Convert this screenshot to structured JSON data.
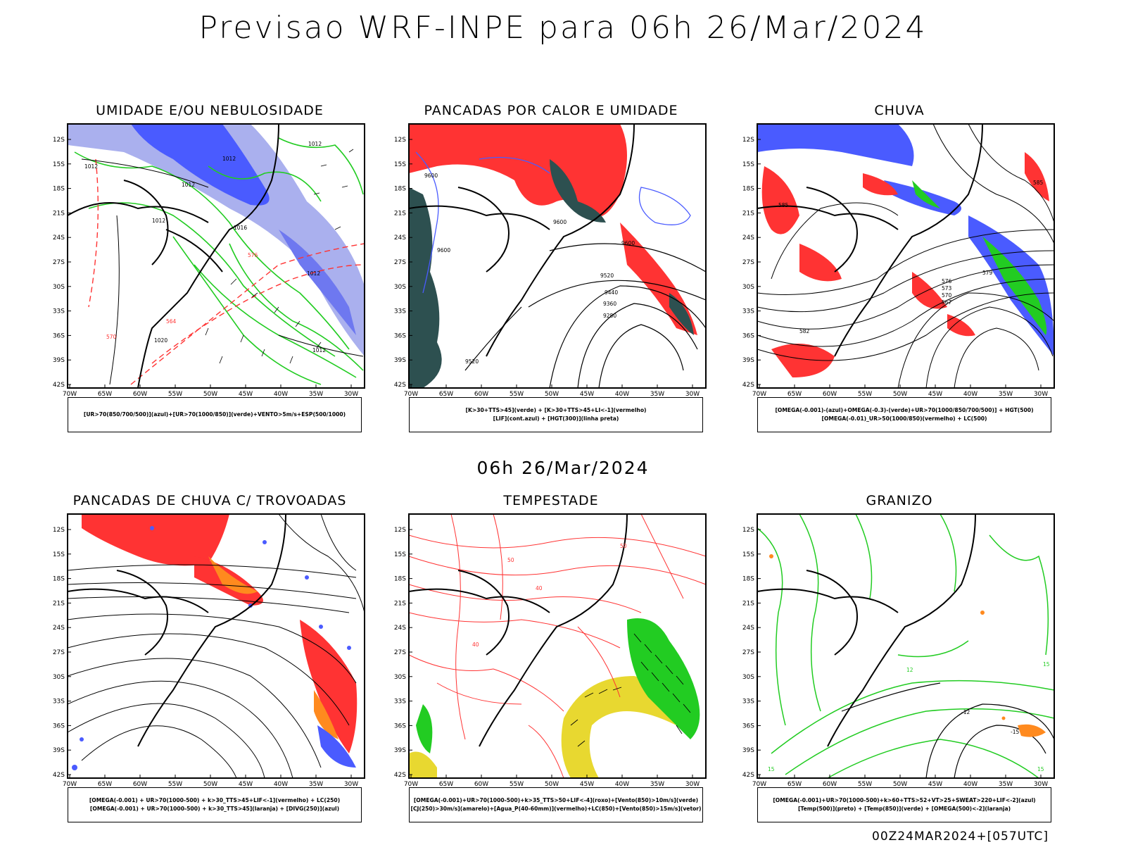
{
  "title": "Previsao WRF-INPE  para 06h 26/Mar/2024",
  "middle_title": "06h 26/Mar/2024",
  "footer": "00Z24MAR2024+[057UTC]",
  "axes": {
    "lat_labels": [
      "12S",
      "15S",
      "18S",
      "21S",
      "24S",
      "27S",
      "30S",
      "33S",
      "36S",
      "39S",
      "42S"
    ],
    "lon_labels": [
      "70W",
      "65W",
      "60W",
      "55W",
      "50W",
      "45W",
      "40W",
      "35W",
      "30W"
    ]
  },
  "colors": {
    "blue": "#4a5bff",
    "lavender": "#aab0ee",
    "green": "#22cc22",
    "red": "#ff3333",
    "dark_teal": "#2d5050",
    "orange": "#ff8a1e",
    "yellow": "#e8d830"
  },
  "panels": [
    {
      "title": "UMIDADE E/OU NEBULOSIDADE",
      "legend": [
        "[UR>70(850/700/500)](azul)+[UR>70(1000/850)](verde)+VENTO>5m/s+ESP(500/1000)"
      ],
      "contour_labels": [
        "1012",
        "1012",
        "1012",
        "1012",
        "1016",
        "1020",
        "570",
        "564",
        "576",
        "1012",
        "1012",
        "1012"
      ]
    },
    {
      "title": "PANCADAS POR CALOR E UMIDADE",
      "legend": [
        "[K>30+TTS>45](verde) + [K>30+TTS>45+LI<-1](vermelho)",
        "[LIF](cont.azul) + [HGT(300)](linha preta)"
      ],
      "contour_labels": [
        "9600",
        "9600",
        "9600",
        "9600",
        "9520",
        "9440",
        "9360",
        "9280",
        "9520"
      ]
    },
    {
      "title": "CHUVA",
      "legend": [
        "[OMEGA(-0.001)-(azul)+OMEGA(-0.3)-(verde)+UR>70(1000/850/700/500)] + HGT(500)",
        "[OMEGA(-0.01)_UR>50(1000/850)(vermelho) + LC(500)"
      ],
      "contour_labels": [
        "585",
        "585",
        "582",
        "579",
        "576",
        "573",
        "570",
        "567"
      ]
    },
    {
      "title": "PANCADAS DE CHUVA C/ TROVOADAS",
      "legend": [
        "[OMEGA(-0.001) + UR>70(1000-500) + k>30_TTS>45+LIF<-1](vermelho) + LC(250)",
        "[OMEGA(-0.001) + UR>70(1000-500) + k>30_TTS>45](laranja) + [DIVG(250)](azul)"
      ],
      "contour_labels": []
    },
    {
      "title": "TEMPESTADE",
      "legend": [
        "[OMEGA(-0.001)+UR>70(1000-500)+k>35_TTS>50+LIF<-4](roxo)+[Vento(850)>10m/s](verde)",
        "[CJ(250)>30m/s](amarelo)+[Agua_P(40-60mm)](vermelho)+LC(850)+[Vento(850)>15m/s](vetor)"
      ],
      "contour_labels": [
        "50",
        "40",
        "50",
        "40"
      ]
    },
    {
      "title": "GRANIZO",
      "legend": [
        "[OMEGA(-0.001)+UR>70(1000-500)+k>60+TTS>52+VT>25+SWEAT>220+LIF<-2](azul)",
        "[Temp(500)](preto) + [Temp(850)](verde) + [OMEGA(500)<-2](laranja)"
      ],
      "contour_labels": [
        "12",
        "15",
        "-12",
        "-15",
        "15",
        "15"
      ]
    }
  ]
}
